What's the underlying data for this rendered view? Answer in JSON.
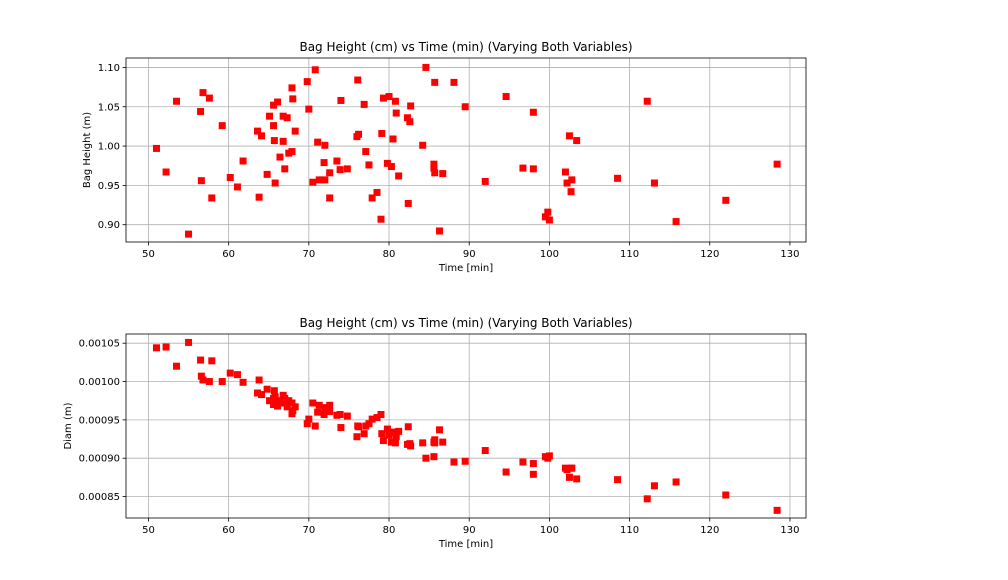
{
  "chart_data": [
    {
      "type": "scatter",
      "title": "Bag Height (cm) vs Time (min) (Varying Both Variables)",
      "xlabel": "Time [min]",
      "ylabel": "Bag Height (m)",
      "xlim": [
        47.2,
        132.0
      ],
      "ylim": [
        0.878,
        1.112
      ],
      "xticks": [
        "50",
        "60",
        "70",
        "80",
        "90",
        "100",
        "110",
        "120",
        "130"
      ],
      "yticks": [
        "0.90",
        "0.95",
        "1.00",
        "1.05",
        "1.10"
      ],
      "grid": true,
      "marker": "square",
      "color": "#ff0000",
      "points": [
        [
          51.0,
          0.997
        ],
        [
          52.2,
          0.967
        ],
        [
          53.5,
          1.057
        ],
        [
          55.0,
          0.888
        ],
        [
          56.5,
          1.044
        ],
        [
          56.6,
          0.956
        ],
        [
          56.8,
          1.068
        ],
        [
          57.6,
          1.061
        ],
        [
          57.9,
          0.934
        ],
        [
          59.2,
          1.026
        ],
        [
          60.2,
          0.96
        ],
        [
          61.1,
          0.948
        ],
        [
          61.8,
          0.981
        ],
        [
          63.6,
          1.019
        ],
        [
          63.8,
          0.935
        ],
        [
          64.1,
          1.013
        ],
        [
          64.8,
          0.964
        ],
        [
          65.1,
          1.038
        ],
        [
          65.6,
          1.052
        ],
        [
          65.6,
          1.026
        ],
        [
          65.7,
          1.007
        ],
        [
          65.8,
          0.953
        ],
        [
          66.1,
          1.056
        ],
        [
          66.4,
          0.986
        ],
        [
          66.8,
          1.038
        ],
        [
          66.8,
          1.006
        ],
        [
          67.0,
          0.971
        ],
        [
          67.3,
          1.036
        ],
        [
          67.5,
          0.991
        ],
        [
          67.9,
          1.074
        ],
        [
          67.9,
          0.993
        ],
        [
          68.0,
          1.06
        ],
        [
          68.3,
          1.019
        ],
        [
          69.8,
          1.082
        ],
        [
          70.0,
          1.047
        ],
        [
          70.5,
          0.954
        ],
        [
          70.8,
          1.097
        ],
        [
          71.1,
          1.005
        ],
        [
          71.3,
          0.957
        ],
        [
          71.9,
          0.979
        ],
        [
          72.0,
          1.001
        ],
        [
          72.0,
          0.957
        ],
        [
          72.6,
          0.934
        ],
        [
          72.6,
          0.966
        ],
        [
          73.5,
          0.981
        ],
        [
          73.9,
          0.97
        ],
        [
          74.0,
          1.058
        ],
        [
          74.8,
          0.971
        ],
        [
          76.0,
          1.012
        ],
        [
          76.1,
          1.084
        ],
        [
          76.2,
          1.015
        ],
        [
          76.9,
          1.053
        ],
        [
          77.1,
          0.993
        ],
        [
          77.5,
          0.976
        ],
        [
          77.9,
          0.934
        ],
        [
          78.5,
          0.941
        ],
        [
          79.0,
          0.907
        ],
        [
          79.1,
          1.016
        ],
        [
          79.3,
          1.061
        ],
        [
          79.8,
          0.978
        ],
        [
          80.0,
          1.063
        ],
        [
          80.3,
          0.974
        ],
        [
          80.5,
          1.009
        ],
        [
          80.8,
          1.057
        ],
        [
          80.9,
          1.042
        ],
        [
          81.2,
          0.962
        ],
        [
          82.3,
          1.036
        ],
        [
          82.4,
          0.927
        ],
        [
          82.6,
          1.031
        ],
        [
          82.7,
          1.051
        ],
        [
          84.2,
          1.001
        ],
        [
          84.6,
          1.1
        ],
        [
          85.6,
          0.977
        ],
        [
          85.6,
          0.972
        ],
        [
          85.7,
          0.966
        ],
        [
          85.7,
          1.081
        ],
        [
          86.3,
          0.892
        ],
        [
          86.7,
          0.965
        ],
        [
          88.1,
          1.081
        ],
        [
          89.5,
          1.05
        ],
        [
          92.0,
          0.955
        ],
        [
          94.6,
          1.063
        ],
        [
          96.7,
          0.972
        ],
        [
          98.0,
          0.971
        ],
        [
          98.0,
          1.043
        ],
        [
          99.5,
          0.91
        ],
        [
          99.8,
          0.916
        ],
        [
          100.0,
          0.906
        ],
        [
          102.0,
          0.967
        ],
        [
          102.2,
          0.953
        ],
        [
          102.5,
          1.013
        ],
        [
          102.7,
          0.942
        ],
        [
          102.8,
          0.957
        ],
        [
          103.4,
          1.007
        ],
        [
          108.5,
          0.959
        ],
        [
          112.2,
          1.057
        ],
        [
          113.1,
          0.953
        ],
        [
          115.8,
          0.904
        ],
        [
          122.0,
          0.931
        ],
        [
          128.4,
          0.977
        ]
      ]
    },
    {
      "type": "scatter",
      "title": "Bag Height (cm) vs Time (min) (Varying Both Variables)",
      "xlabel": "Time [min]",
      "ylabel": "Diam (m)",
      "xlim": [
        47.2,
        132.0
      ],
      "ylim": [
        0.000822,
        0.001062
      ],
      "xticks": [
        "50",
        "60",
        "70",
        "80",
        "90",
        "100",
        "110",
        "120",
        "130"
      ],
      "yticks": [
        "0.00085",
        "0.00090",
        "0.00095",
        "0.00100",
        "0.00105"
      ],
      "grid": true,
      "marker": "square",
      "color": "#ff0000",
      "points": [
        [
          51.0,
          0.001044
        ],
        [
          52.2,
          0.001045
        ],
        [
          53.5,
          0.00102
        ],
        [
          55.0,
          0.001051
        ],
        [
          56.5,
          0.001028
        ],
        [
          56.6,
          0.001007
        ],
        [
          56.8,
          0.001002
        ],
        [
          57.6,
          0.001
        ],
        [
          57.9,
          0.001027
        ],
        [
          59.2,
          0.001
        ],
        [
          60.2,
          0.001011
        ],
        [
          61.1,
          0.001009
        ],
        [
          61.8,
          0.000999
        ],
        [
          63.6,
          0.000985
        ],
        [
          63.8,
          0.001002
        ],
        [
          64.1,
          0.000983
        ],
        [
          64.8,
          0.00099
        ],
        [
          65.1,
          0.000975
        ],
        [
          65.6,
          0.000978
        ],
        [
          65.6,
          0.00097
        ],
        [
          65.7,
          0.000988
        ],
        [
          65.8,
          0.00098
        ],
        [
          66.1,
          0.000968
        ],
        [
          66.4,
          0.000975
        ],
        [
          66.8,
          0.000982
        ],
        [
          66.8,
          0.000972
        ],
        [
          67.0,
          0.000978
        ],
        [
          67.3,
          0.000967
        ],
        [
          67.5,
          0.000975
        ],
        [
          67.9,
          0.000958
        ],
        [
          67.9,
          0.000972
        ],
        [
          68.0,
          0.000962
        ],
        [
          68.3,
          0.000967
        ],
        [
          69.8,
          0.000945
        ],
        [
          70.0,
          0.000951
        ],
        [
          70.5,
          0.000972
        ],
        [
          70.8,
          0.000942
        ],
        [
          71.1,
          0.00096
        ],
        [
          71.3,
          0.000969
        ],
        [
          71.9,
          0.000957
        ],
        [
          72.0,
          0.000966
        ],
        [
          72.0,
          0.000963
        ],
        [
          72.6,
          0.000969
        ],
        [
          72.6,
          0.000961
        ],
        [
          73.5,
          0.000956
        ],
        [
          73.9,
          0.000957
        ],
        [
          74.0,
          0.00094
        ],
        [
          74.8,
          0.000955
        ],
        [
          76.0,
          0.000928
        ],
        [
          76.1,
          0.000942
        ],
        [
          76.2,
          0.000941
        ],
        [
          76.9,
          0.000932
        ],
        [
          77.1,
          0.000942
        ],
        [
          77.5,
          0.000945
        ],
        [
          77.9,
          0.000951
        ],
        [
          78.5,
          0.000953
        ],
        [
          79.0,
          0.000957
        ],
        [
          79.1,
          0.000932
        ],
        [
          79.3,
          0.000923
        ],
        [
          79.8,
          0.000938
        ],
        [
          80.0,
          0.00093
        ],
        [
          80.3,
          0.000921
        ],
        [
          80.5,
          0.000934
        ],
        [
          80.8,
          0.00092
        ],
        [
          80.9,
          0.000928
        ],
        [
          81.2,
          0.000935
        ],
        [
          82.3,
          0.000918
        ],
        [
          82.4,
          0.000941
        ],
        [
          82.6,
          0.000919
        ],
        [
          82.7,
          0.000916
        ],
        [
          84.2,
          0.00092
        ],
        [
          84.6,
          0.0009
        ],
        [
          85.6,
          0.000921
        ],
        [
          85.6,
          0.000902
        ],
        [
          85.7,
          0.000924
        ],
        [
          85.7,
          0.00092
        ],
        [
          86.3,
          0.000937
        ],
        [
          86.7,
          0.000921
        ],
        [
          88.1,
          0.000895
        ],
        [
          89.5,
          0.000896
        ],
        [
          92.0,
          0.00091
        ],
        [
          94.6,
          0.000882
        ],
        [
          96.7,
          0.000895
        ],
        [
          98.0,
          0.000893
        ],
        [
          98.0,
          0.000879
        ],
        [
          99.5,
          0.000902
        ],
        [
          99.8,
          0.0009
        ],
        [
          100.0,
          0.000903
        ],
        [
          102.0,
          0.000887
        ],
        [
          102.2,
          0.000885
        ],
        [
          102.5,
          0.000875
        ],
        [
          102.7,
          0.000887
        ],
        [
          102.8,
          0.000887
        ],
        [
          103.4,
          0.000873
        ],
        [
          108.5,
          0.000872
        ],
        [
          112.2,
          0.000847
        ],
        [
          113.1,
          0.000864
        ],
        [
          115.8,
          0.000869
        ],
        [
          122.0,
          0.000852
        ],
        [
          128.4,
          0.000832
        ]
      ]
    }
  ]
}
